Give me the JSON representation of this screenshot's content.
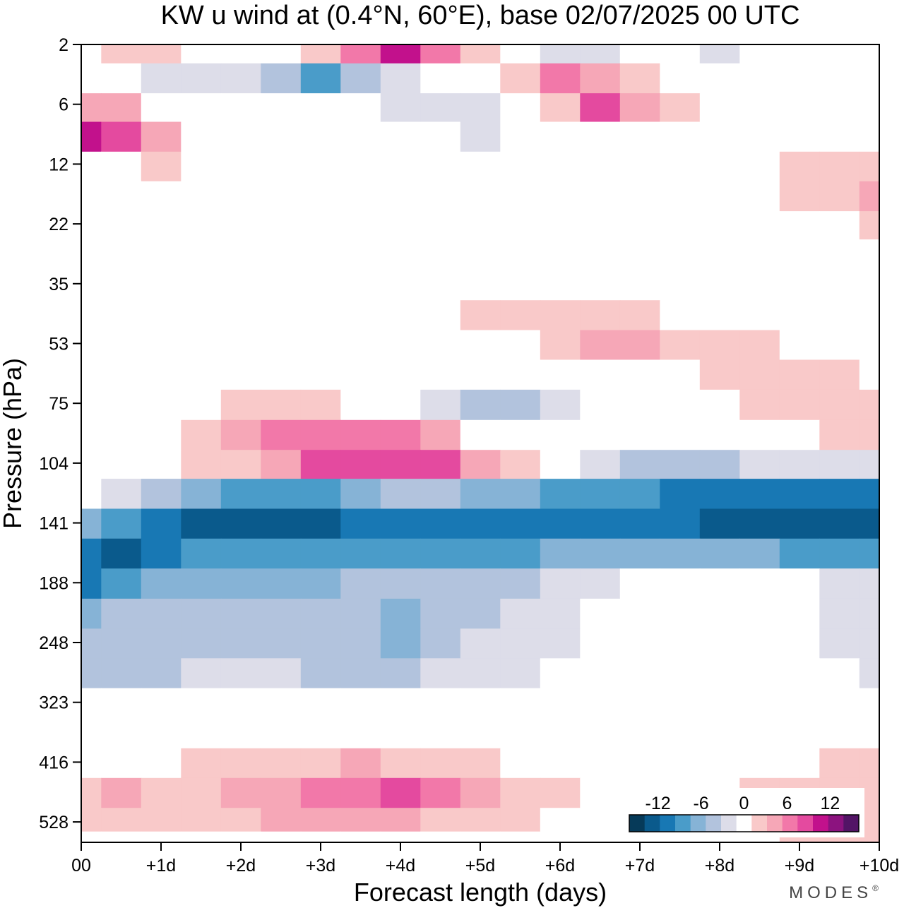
{
  "chart_data": {
    "type": "heatmap",
    "title": "KW u wind at (0.4°N, 60°E),  base 02/07/2025  00 UTC",
    "xlabel": "Forecast length (days)",
    "ylabel": "Pressure (hPa)",
    "x_ticks": [
      "00",
      "+1d",
      "+2d",
      "+3d",
      "+4d",
      "+5d",
      "+6d",
      "+7d",
      "+8d",
      "+9d",
      "+10d"
    ],
    "y_ticks": [
      "2",
      "6",
      "12",
      "22",
      "35",
      "53",
      "75",
      "104",
      "141",
      "188",
      "248",
      "323",
      "416",
      "528"
    ],
    "x_days": [
      0,
      0.5,
      1,
      1.5,
      2,
      2.5,
      3,
      3.5,
      4,
      4.5,
      5,
      5.5,
      6,
      6.5,
      7,
      7.5,
      8,
      8.5,
      9,
      9.5,
      10
    ],
    "y_levels_hPa": [
      2,
      4,
      6,
      9,
      12,
      17,
      22,
      28,
      35,
      44,
      53,
      64,
      75,
      90,
      104,
      122,
      141,
      164,
      188,
      218,
      248,
      285,
      323,
      370,
      416,
      472,
      528,
      570
    ],
    "u_wind": [
      [
        0,
        3,
        3,
        1,
        0,
        0,
        3,
        6,
        10,
        7,
        3,
        0,
        -3,
        -4,
        -2,
        -2,
        -3,
        -2,
        -1,
        0,
        0
      ],
      [
        -1,
        -2,
        -4,
        -3,
        -3,
        -5,
        -10,
        -6,
        -3,
        -2,
        -1,
        2,
        6,
        5,
        3,
        0,
        -1,
        -2,
        -1,
        -2,
        -1
      ],
      [
        4,
        5,
        1,
        -1,
        -1,
        -2,
        -2,
        -2,
        -3,
        -4,
        -4,
        -2,
        3,
        9,
        4,
        2,
        1,
        0,
        0,
        0,
        0
      ],
      [
        10,
        8,
        4,
        1,
        0,
        0,
        0,
        -1,
        -2,
        -2,
        -3,
        -2,
        -1,
        -1,
        -1,
        0,
        0,
        0,
        0,
        0,
        -1
      ],
      [
        0,
        0,
        2,
        0,
        0,
        0,
        0,
        0,
        0,
        0,
        0,
        0,
        -1,
        -1,
        -1,
        0,
        0,
        0,
        2,
        2,
        2
      ],
      [
        -1,
        0,
        0,
        0,
        0,
        0,
        0,
        -1,
        0,
        0,
        0,
        0,
        -1,
        -1,
        -1,
        -1,
        0,
        0,
        2,
        3,
        4
      ],
      [
        -1,
        -1,
        0,
        0,
        0,
        0,
        0,
        0,
        -1,
        -1,
        -1,
        -1,
        -1,
        -1,
        -1,
        -1,
        -1,
        0,
        0,
        1,
        3
      ],
      [
        0,
        0,
        0,
        0,
        0,
        0,
        0,
        0,
        0,
        0,
        0,
        0,
        0,
        -1,
        -1,
        -1,
        -1,
        -1,
        0,
        0,
        0
      ],
      [
        -1,
        -1,
        -1,
        0,
        0,
        0,
        0,
        0,
        0,
        0,
        0,
        0,
        0,
        0,
        -1,
        -1,
        -1,
        -1,
        -1,
        -1,
        0
      ],
      [
        0,
        0,
        0,
        0,
        0,
        0,
        0,
        0,
        1,
        1,
        2,
        3,
        3,
        3,
        2,
        1,
        0,
        -1,
        0,
        0,
        0
      ],
      [
        -1,
        -1,
        -1,
        -1,
        -1,
        -1,
        -1,
        0,
        0,
        0,
        0,
        1,
        3,
        4,
        4,
        3,
        3,
        2,
        1,
        1,
        0
      ],
      [
        1,
        0,
        0,
        0,
        -1,
        -1,
        -1,
        -1,
        -2,
        -2,
        -2,
        -1,
        -1,
        0,
        1,
        1,
        3,
        3,
        2,
        2,
        1
      ],
      [
        -1,
        0,
        0,
        1,
        2,
        2,
        2,
        1,
        -1,
        -4,
        -6,
        -5,
        -4,
        -2,
        -1,
        0,
        1,
        2,
        2,
        2,
        2
      ],
      [
        0,
        0,
        1,
        3,
        4,
        6,
        7,
        7,
        7,
        4,
        1,
        -1,
        -2,
        -2,
        -2,
        -1,
        0,
        0,
        1,
        2,
        3
      ],
      [
        1,
        1,
        1,
        2,
        3,
        5,
        8,
        8,
        8,
        8,
        4,
        2,
        -2,
        -4,
        -6,
        -6,
        -6,
        -4,
        -3,
        -3,
        -3
      ],
      [
        -1,
        -3,
        -6,
        -8,
        -10,
        -10,
        -9,
        -8,
        -6,
        -6,
        -7,
        -8,
        -9,
        -10,
        -10,
        -11,
        -12,
        -12,
        -12,
        -11,
        -11
      ],
      [
        -8,
        -10,
        -12,
        -13,
        -14,
        -14,
        -13,
        -12,
        -11,
        -11,
        -11,
        -11,
        -12,
        -11,
        -11,
        -11,
        -14,
        -14,
        -14,
        -14,
        -14
      ],
      [
        -12,
        -13,
        -11,
        -10,
        -10,
        -10,
        -10,
        -10,
        -10,
        -10,
        -10,
        -9,
        -8,
        -7,
        -7,
        -7,
        -8,
        -8,
        -9,
        -9,
        -9
      ],
      [
        -11,
        -10,
        -8,
        -7,
        -7,
        -7,
        -7,
        -6,
        -6,
        -6,
        -5,
        -5,
        -4,
        -3,
        -2,
        -1,
        0,
        0,
        -2,
        -3,
        -4
      ],
      [
        -8,
        -6,
        -5,
        -5,
        -5,
        -5,
        -5,
        -6,
        -7,
        -6,
        -5,
        -4,
        -3,
        -2,
        -1,
        -1,
        0,
        0,
        -2,
        -3,
        -4
      ],
      [
        -6,
        -6,
        -6,
        -5,
        -5,
        -5,
        -5,
        -5,
        -7,
        -5,
        -4,
        -4,
        -3,
        -2,
        -1,
        -1,
        -1,
        -1,
        -2,
        -3,
        -4
      ],
      [
        -5,
        -5,
        -5,
        -4,
        -4,
        -4,
        -5,
        -5,
        -5,
        -4,
        -4,
        -3,
        -2,
        -2,
        -1,
        -1,
        -1,
        -1,
        -2,
        -2,
        -3
      ],
      [
        -2,
        -2,
        -1,
        -1,
        -1,
        -1,
        -1,
        -1,
        -1,
        -1,
        -1,
        -1,
        -1,
        -1,
        -1,
        -1,
        -1,
        -1,
        -1,
        -1,
        -1
      ],
      [
        0,
        0,
        0,
        0,
        0,
        0,
        0,
        0,
        0,
        0,
        0,
        0,
        0,
        0,
        0,
        0,
        0,
        0,
        0,
        0,
        0
      ],
      [
        1,
        1,
        1,
        2,
        2,
        2,
        3,
        4,
        3,
        2,
        2,
        1,
        1,
        0,
        0,
        0,
        0,
        0,
        1,
        2,
        2
      ],
      [
        3,
        4,
        2,
        3,
        4,
        5,
        6,
        7,
        8,
        7,
        5,
        3,
        2,
        1,
        0,
        0,
        1,
        2,
        2,
        2,
        2
      ],
      [
        2,
        2,
        2,
        2,
        3,
        4,
        4,
        4,
        4,
        3,
        3,
        2,
        1,
        1,
        0,
        0,
        1,
        2,
        3,
        3,
        2
      ],
      [
        1,
        1,
        1,
        1,
        1,
        1,
        1,
        1,
        1,
        1,
        1,
        1,
        1,
        1,
        0,
        0,
        1,
        1,
        2,
        2,
        2
      ]
    ],
    "colorbar": {
      "labels": [
        "-12",
        "-6",
        "0",
        "6",
        "12"
      ],
      "label_values": [
        -12,
        -6,
        0,
        6,
        12
      ],
      "bounds": [
        -16,
        -14,
        -12,
        -10,
        -8,
        -6,
        -4,
        -2,
        2,
        4,
        6,
        8,
        10,
        12,
        14,
        16
      ],
      "colors": [
        "#063a59",
        "#0a5a8c",
        "#1878b4",
        "#4a9cc9",
        "#86b3d6",
        "#b2c3dd",
        "#dddde9",
        "#ffffff",
        "#f9c9c9",
        "#f6a7b7",
        "#f278a9",
        "#e44a9f",
        "#c2118c",
        "#8c137f",
        "#531466"
      ]
    },
    "grid": false,
    "legend": "bottom-right colorbar"
  },
  "branding": {
    "text": "MODES",
    "mark": "®"
  }
}
